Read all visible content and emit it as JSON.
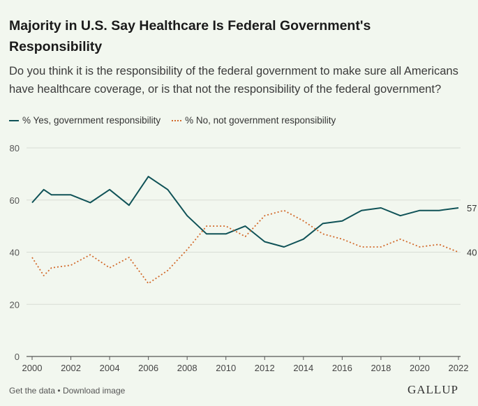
{
  "header": {
    "title": "Majority in U.S. Say Healthcare Is Federal Government's Responsibility",
    "subtitle": "Do you think it is the responsibility of the federal government to make sure all Americans have healthcare coverage, or is that not the responsibility of the federal government?"
  },
  "footer": {
    "get_data": "Get the data",
    "separator": "•",
    "download_image": "Download image",
    "brand": "GALLUP"
  },
  "colors": {
    "yes": "#0f5257",
    "no": "#d2692a",
    "grid": "#d8ddd5",
    "axis": "#555555"
  },
  "chart_data": {
    "type": "line",
    "title": "Majority in U.S. Say Healthcare Is Federal Government's Responsibility",
    "xlabel": "",
    "ylabel": "",
    "xlim": [
      2000,
      2022
    ],
    "ylim": [
      0,
      80
    ],
    "yticks": [
      0,
      20,
      40,
      60,
      80
    ],
    "xticks": [
      2000,
      2002,
      2004,
      2006,
      2008,
      2010,
      2012,
      2014,
      2016,
      2018,
      2020,
      2022
    ],
    "grid": true,
    "legend_position": "top-left",
    "series": [
      {
        "name": "% Yes, government responsibility",
        "style": "solid",
        "end_label": "57",
        "points": [
          [
            2000,
            59
          ],
          [
            2000.6,
            64
          ],
          [
            2001,
            62
          ],
          [
            2002,
            62
          ],
          [
            2003,
            59
          ],
          [
            2004,
            64
          ],
          [
            2005,
            58
          ],
          [
            2006,
            69
          ],
          [
            2007,
            64
          ],
          [
            2008,
            54
          ],
          [
            2009,
            47
          ],
          [
            2010,
            47
          ],
          [
            2011,
            50
          ],
          [
            2012,
            44
          ],
          [
            2013,
            42
          ],
          [
            2014,
            45
          ],
          [
            2015,
            51
          ],
          [
            2016,
            52
          ],
          [
            2017,
            56
          ],
          [
            2018,
            57
          ],
          [
            2019,
            54
          ],
          [
            2020,
            56
          ],
          [
            2021,
            56
          ],
          [
            2022,
            57
          ]
        ]
      },
      {
        "name": "% No, not government responsibility",
        "style": "dotted",
        "end_label": "40",
        "points": [
          [
            2000,
            38
          ],
          [
            2000.6,
            31
          ],
          [
            2001,
            34
          ],
          [
            2002,
            35
          ],
          [
            2003,
            39
          ],
          [
            2004,
            34
          ],
          [
            2005,
            38
          ],
          [
            2006,
            28
          ],
          [
            2007,
            33
          ],
          [
            2008,
            41
          ],
          [
            2009,
            50
          ],
          [
            2010,
            50
          ],
          [
            2011,
            46
          ],
          [
            2012,
            54
          ],
          [
            2013,
            56
          ],
          [
            2014,
            52
          ],
          [
            2015,
            47
          ],
          [
            2016,
            45
          ],
          [
            2017,
            42
          ],
          [
            2018,
            42
          ],
          [
            2019,
            45
          ],
          [
            2020,
            42
          ],
          [
            2021,
            43
          ],
          [
            2022,
            40
          ]
        ]
      }
    ]
  }
}
